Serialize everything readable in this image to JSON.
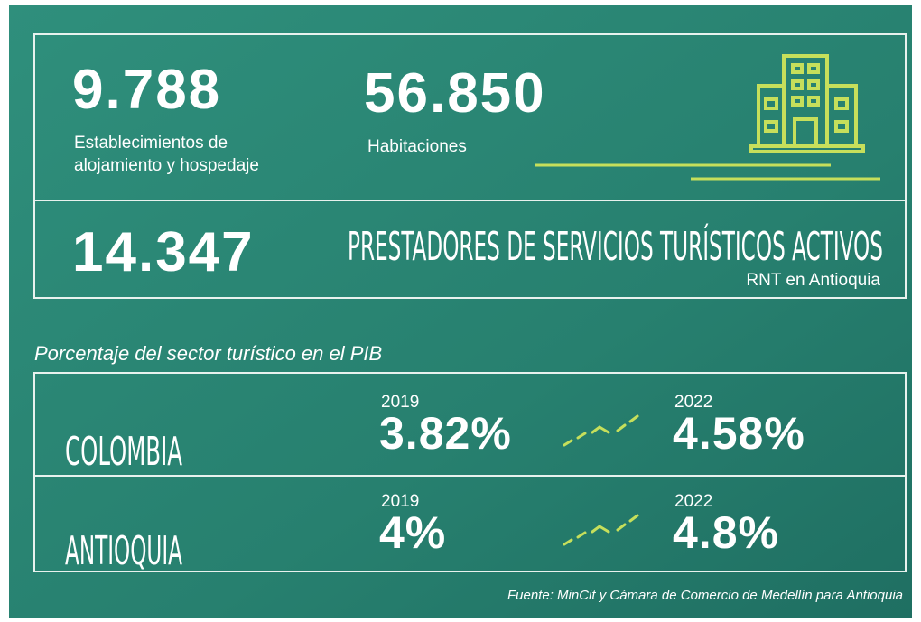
{
  "stats": [
    {
      "value": "9.788",
      "label": [
        "Establecimientos de",
        "alojamiento y hospedaje"
      ]
    },
    {
      "value": "56.850",
      "label": [
        "Habitaciones"
      ]
    },
    {
      "value": "14.347",
      "label": [
        "PRESTADORES DE SERVICIOS TURÍSTICOS ACTIVOS"
      ],
      "sublabel": "RNT en Antioquia"
    }
  ],
  "pib": {
    "title": "Porcentaje del sector turístico en el PIB",
    "rows": [
      {
        "region": "COLOMBIA",
        "year_a": "2019",
        "value_a": "3.82%",
        "year_b": "2022",
        "value_b": "4.58%"
      },
      {
        "region": "ANTIOQUIA",
        "year_a": "2019",
        "value_a": "4%",
        "year_b": "2022",
        "value_b": "4.8%"
      }
    ]
  },
  "source": "Fuente: MinCit y Cámara de Comercio de Medellín para Antioquia"
}
